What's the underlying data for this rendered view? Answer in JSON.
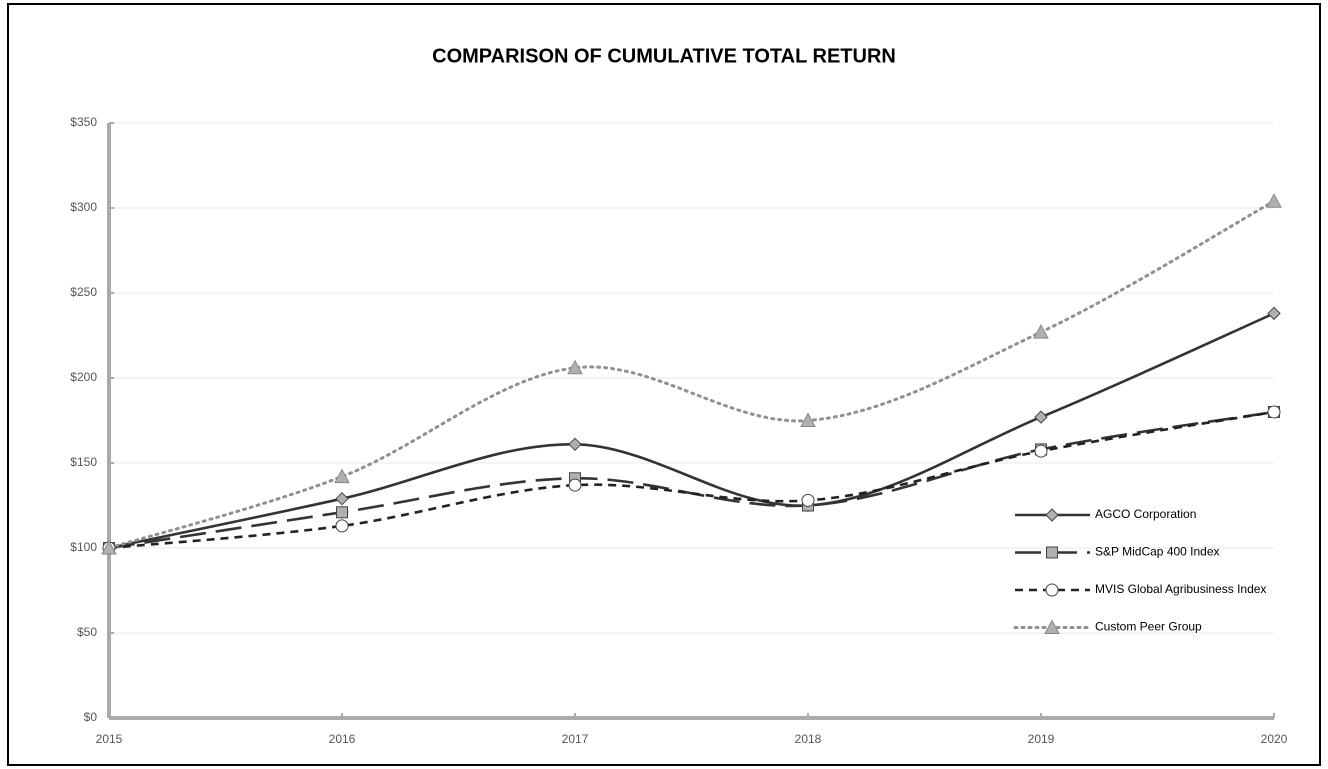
{
  "chart_data": {
    "type": "line",
    "title": "COMPARISON OF CUMULATIVE TOTAL RETURN",
    "categories": [
      "2015",
      "2016",
      "2017",
      "2018",
      "2019",
      "2020"
    ],
    "series": [
      {
        "name": "AGCO Corporation",
        "color": "#333333",
        "dash": "solid",
        "marker": "diamond",
        "marker_color": "#b0b0b0",
        "values": [
          100,
          129,
          161,
          125,
          177,
          238
        ]
      },
      {
        "name": "S&P MidCap 400 Index",
        "color": "#333333",
        "dash": "longdash",
        "marker": "square",
        "marker_color": "#b0b0b0",
        "values": [
          100,
          121,
          141,
          125,
          158,
          180
        ]
      },
      {
        "name": "MVIS Global Agribusiness Index",
        "color": "#222222",
        "dash": "shortdash",
        "marker": "circle",
        "marker_color": "#ffffff",
        "values": [
          100,
          113,
          137,
          128,
          157,
          180
        ]
      },
      {
        "name": "Custom Peer Group",
        "color": "#909090",
        "dash": "dotted",
        "marker": "triangle",
        "marker_color": "#b0b0b0",
        "values": [
          100,
          142,
          206,
          175,
          227,
          304
        ]
      }
    ],
    "ylim": [
      0,
      350
    ],
    "yticks": [
      {
        "value": 0,
        "label": "$0"
      },
      {
        "value": 50,
        "label": "$50"
      },
      {
        "value": 100,
        "label": "$100"
      },
      {
        "value": 150,
        "label": "$150"
      },
      {
        "value": 200,
        "label": "$200"
      },
      {
        "value": 250,
        "label": "$250"
      },
      {
        "value": 300,
        "label": "$300"
      },
      {
        "value": 350,
        "label": "$350"
      }
    ],
    "grid": true,
    "smooth": true,
    "legend": "right"
  }
}
